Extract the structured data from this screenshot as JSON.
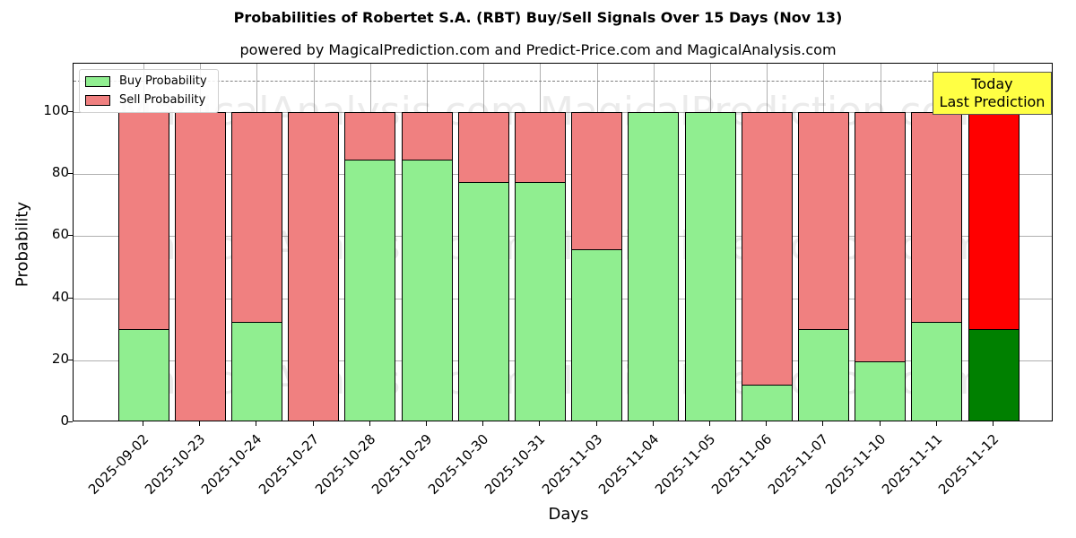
{
  "header": {
    "title": "Probabilities of Robertet S.A. (RBT) Buy/Sell Signals Over 15 Days (Nov 13)",
    "subtitle": "powered by MagicalPrediction.com and Predict-Price.com and MagicalAnalysis.com"
  },
  "legend": {
    "buy_label": "Buy Probability",
    "sell_label": "Sell Probability"
  },
  "annotation": {
    "line1": "Today",
    "line2": "Last Prediction"
  },
  "axes": {
    "xlabel": "Days",
    "ylabel": "Probability",
    "yticks": [
      "0",
      "20",
      "40",
      "60",
      "80",
      "100"
    ]
  },
  "watermarks": [
    "MagicalAnalysis.com",
    "MagicalPrediction.com"
  ],
  "colors": {
    "buy": "#90ee90",
    "sell": "#f08080",
    "buy_today": "#008000",
    "sell_today": "#ff0000",
    "annotation_bg": "#ffff44"
  },
  "chart_data": {
    "type": "bar",
    "stacked": true,
    "title": "Probabilities of Robertet S.A. (RBT) Buy/Sell Signals Over 15 Days (Nov 13)",
    "subtitle": "powered by MagicalPrediction.com and Predict-Price.com and MagicalAnalysis.com",
    "xlabel": "Days",
    "ylabel": "Probability",
    "ylim": [
      0,
      115
    ],
    "yticks": [
      0,
      20,
      40,
      60,
      80,
      100
    ],
    "grid": true,
    "legend_position": "upper left",
    "reference_line": {
      "y": 110,
      "style": "dashed",
      "color": "#808080"
    },
    "categories": [
      "2025-09-02",
      "2025-10-23",
      "2025-10-24",
      "2025-10-27",
      "2025-10-28",
      "2025-10-29",
      "2025-10-30",
      "2025-10-31",
      "2025-11-03",
      "2025-11-04",
      "2025-11-05",
      "2025-11-06",
      "2025-11-07",
      "2025-11-10",
      "2025-11-11",
      "2025-11-12"
    ],
    "series": [
      {
        "name": "Buy Probability",
        "values": [
          30,
          0,
          32.4,
          0,
          84.7,
          84.7,
          77.6,
          77.6,
          55.8,
          100,
          100,
          12.1,
          30,
          19.7,
          32.4,
          30
        ]
      },
      {
        "name": "Sell Probability",
        "values": [
          70,
          100,
          67.6,
          100,
          15.3,
          15.3,
          22.4,
          22.4,
          44.2,
          0,
          0,
          87.9,
          70,
          80.3,
          67.6,
          70
        ]
      }
    ],
    "annotations": [
      {
        "text": "Today\nLast Prediction",
        "x": "2025-11-12"
      }
    ]
  }
}
